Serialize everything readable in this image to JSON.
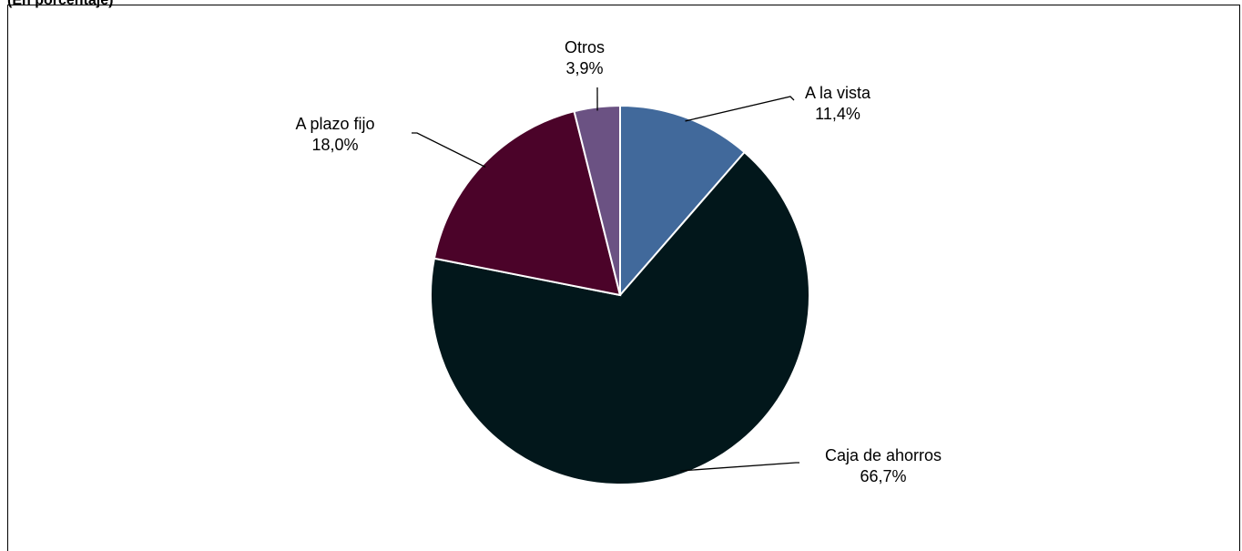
{
  "subtitle": "(En porcentaje)",
  "chart_data": {
    "type": "pie",
    "title": "",
    "slices": [
      {
        "label": "A la vista",
        "value": 11.4,
        "value_label": "11,4%",
        "color": "#41699b"
      },
      {
        "label": "Caja de ahorros",
        "value": 66.7,
        "value_label": "66,7%",
        "color": "#02171b"
      },
      {
        "label": "A plazo fijo",
        "value": 18.0,
        "value_label": "18,0%",
        "color": "#4b0329"
      },
      {
        "label": "Otros",
        "value": 3.9,
        "value_label": "3,9%",
        "color": "#6b5283"
      }
    ],
    "start_angle": "12 o'clock",
    "direction": "clockwise",
    "legend": "none"
  }
}
